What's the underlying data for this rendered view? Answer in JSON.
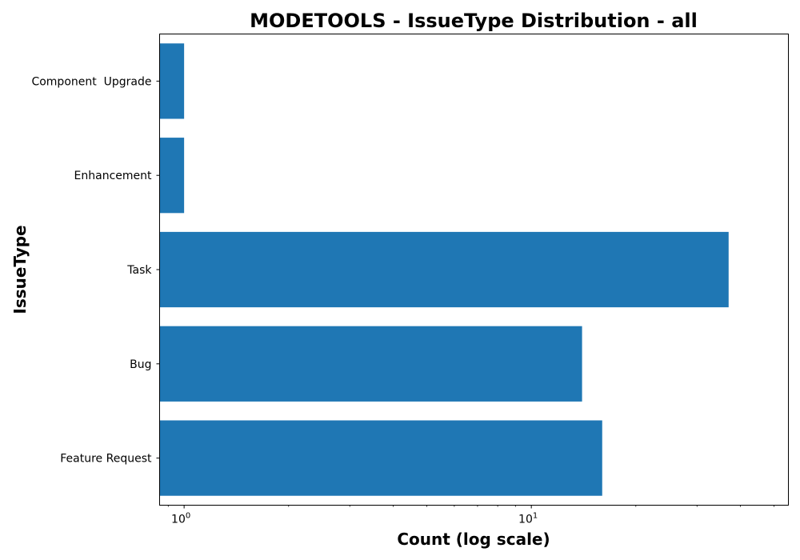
{
  "chart_data": {
    "type": "bar",
    "orientation": "horizontal",
    "title": "MODETOOLS - IssueType Distribution - all",
    "xlabel": "Count (log scale)",
    "ylabel": "IssueType",
    "x_scale": "log",
    "xlim": [
      0.85,
      55
    ],
    "x_ticks": [
      {
        "value": 1,
        "base": "10",
        "exponent": "0"
      },
      {
        "value": 10,
        "base": "10",
        "exponent": "1"
      }
    ],
    "categories": [
      "Component  Upgrade",
      "Enhancement",
      "Task",
      "Bug",
      "Feature Request"
    ],
    "values": [
      1,
      1,
      37,
      14,
      16
    ],
    "bar_color": "#1f77b4",
    "grid": false,
    "legend": "none"
  }
}
